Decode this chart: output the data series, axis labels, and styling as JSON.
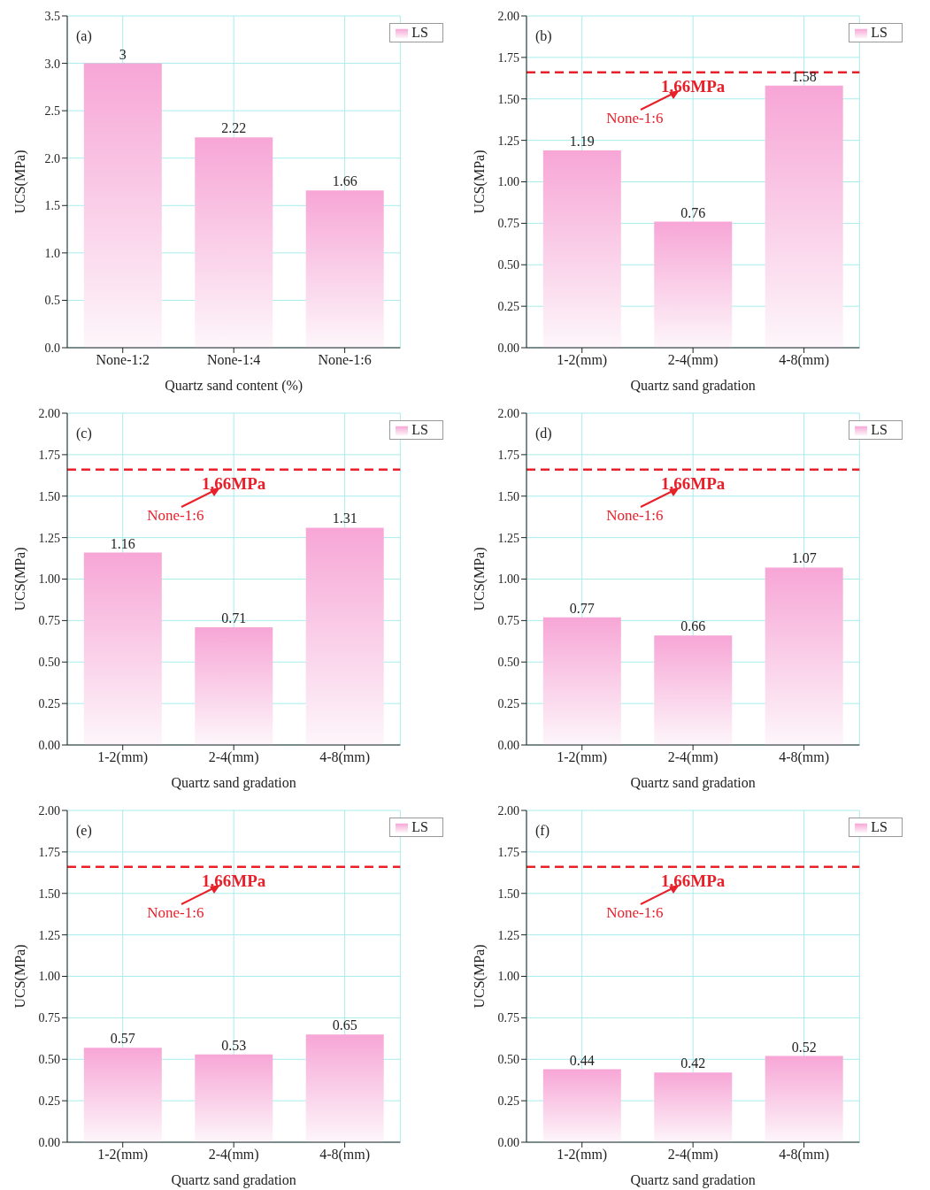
{
  "chart_data": [
    {
      "type": "bar",
      "categories": [
        "None-1:2",
        "None-1:4",
        "None-1:6"
      ],
      "series": [
        {
          "name": "LS",
          "color": "#f7a6d6",
          "values": [
            3,
            2.22,
            1.66
          ]
        }
      ],
      "xlabel": "Quartz sand content (%)",
      "ylabel": "UCS(MPa)",
      "ylim": [
        0,
        3.5
      ],
      "yticks": [
        {
          "value": 0,
          "label": "0.0"
        },
        0.5,
        {
          "value": 1,
          "label": "1.0"
        },
        1.5,
        {
          "value": 2,
          "label": "2.0"
        },
        2.5,
        {
          "value": 3,
          "label": "3.0"
        },
        3.5
      ],
      "grid": true,
      "legend": "top right",
      "data_labels": true,
      "annotations": [
        "(a)"
      ]
    },
    {
      "type": "bar",
      "categories": [
        "1-2(mm)",
        "2-4(mm)",
        "4-8(mm)"
      ],
      "series": [
        {
          "name": "LS",
          "color": "#f7a6d6",
          "values": [
            1.19,
            0.76,
            1.58
          ]
        }
      ],
      "xlabel": "Quartz sand gradation",
      "ylabel": "UCS(MPa)",
      "ylim": [
        0,
        2
      ],
      "yticks": [
        {
          "value": 0,
          "label": "0.00"
        },
        0.25,
        {
          "value": 0.5,
          "label": "0.50"
        },
        0.75,
        {
          "value": 1,
          "label": "1.00"
        },
        1.25,
        {
          "value": 1.5,
          "label": "1.50"
        },
        1.75,
        {
          "value": 2,
          "label": "2.00"
        }
      ],
      "grid": true,
      "legend": "top right",
      "data_labels": true,
      "ref_lines": [
        {
          "axis": "y",
          "value": 1.66,
          "label": "1.66MPa",
          "color": "#e8202a",
          "line_style": "dashed"
        }
      ],
      "annotations": [
        "(b)",
        "None-1:6"
      ]
    },
    {
      "type": "bar",
      "categories": [
        "1-2(mm)",
        "2-4(mm)",
        "4-8(mm)"
      ],
      "series": [
        {
          "name": "LS",
          "color": "#f7a6d6",
          "values": [
            1.16,
            0.71,
            1.31
          ]
        }
      ],
      "xlabel": "Quartz sand gradation",
      "ylabel": "UCS(MPa)",
      "ylim": [
        0,
        2
      ],
      "yticks": [
        {
          "value": 0,
          "label": "0.00"
        },
        0.25,
        {
          "value": 0.5,
          "label": "0.50"
        },
        0.75,
        {
          "value": 1,
          "label": "1.00"
        },
        1.25,
        {
          "value": 1.5,
          "label": "1.50"
        },
        1.75,
        {
          "value": 2,
          "label": "2.00"
        }
      ],
      "grid": true,
      "legend": "top right",
      "data_labels": true,
      "ref_lines": [
        {
          "axis": "y",
          "value": 1.66,
          "label": "1.66MPa",
          "color": "#e8202a",
          "line_style": "dashed"
        }
      ],
      "annotations": [
        "(c)",
        "None-1:6"
      ]
    },
    {
      "type": "bar",
      "categories": [
        "1-2(mm)",
        "2-4(mm)",
        "4-8(mm)"
      ],
      "series": [
        {
          "name": "LS",
          "color": "#f7a6d6",
          "values": [
            0.77,
            0.66,
            1.07
          ]
        }
      ],
      "xlabel": "Quartz sand gradation",
      "ylabel": "UCS(MPa)",
      "ylim": [
        0,
        2
      ],
      "yticks": [
        {
          "value": 0,
          "label": "0.00"
        },
        0.25,
        {
          "value": 0.5,
          "label": "0.50"
        },
        0.75,
        {
          "value": 1,
          "label": "1.00"
        },
        1.25,
        {
          "value": 1.5,
          "label": "1.50"
        },
        1.75,
        {
          "value": 2,
          "label": "2.00"
        }
      ],
      "grid": true,
      "legend": "top right",
      "data_labels": true,
      "ref_lines": [
        {
          "axis": "y",
          "value": 1.66,
          "label": "1.66MPa",
          "color": "#e8202a",
          "line_style": "dashed"
        }
      ],
      "annotations": [
        "(d)",
        "None-1:6"
      ]
    },
    {
      "type": "bar",
      "categories": [
        "1-2(mm)",
        "2-4(mm)",
        "4-8(mm)"
      ],
      "series": [
        {
          "name": "LS",
          "color": "#f7a6d6",
          "values": [
            0.57,
            0.53,
            0.65
          ]
        }
      ],
      "xlabel": "Quartz sand gradation",
      "ylabel": "UCS(MPa)",
      "ylim": [
        0,
        2
      ],
      "yticks": [
        {
          "value": 0,
          "label": "0.00"
        },
        0.25,
        {
          "value": 0.5,
          "label": "0.50"
        },
        0.75,
        {
          "value": 1,
          "label": "1.00"
        },
        1.25,
        {
          "value": 1.5,
          "label": "1.50"
        },
        1.75,
        {
          "value": 2,
          "label": "2.00"
        }
      ],
      "grid": true,
      "legend": "top right",
      "data_labels": true,
      "ref_lines": [
        {
          "axis": "y",
          "value": 1.66,
          "label": "1.66MPa",
          "color": "#e8202a",
          "line_style": "dashed"
        }
      ],
      "annotations": [
        "(e)",
        "None-1:6"
      ]
    },
    {
      "type": "bar",
      "categories": [
        "1-2(mm)",
        "2-4(mm)",
        "4-8(mm)"
      ],
      "series": [
        {
          "name": "LS",
          "color": "#f7a6d6",
          "values": [
            0.44,
            0.42,
            0.52
          ]
        }
      ],
      "xlabel": "Quartz sand gradation",
      "ylabel": "UCS(MPa)",
      "ylim": [
        0,
        2
      ],
      "yticks": [
        {
          "value": 0,
          "label": "0.00"
        },
        0.25,
        {
          "value": 0.5,
          "label": "0.50"
        },
        0.75,
        {
          "value": 1,
          "label": "1.00"
        },
        1.25,
        {
          "value": 1.5,
          "label": "1.50"
        },
        1.75,
        {
          "value": 2,
          "label": "2.00"
        }
      ],
      "grid": true,
      "legend": "top right",
      "data_labels": true,
      "ref_lines": [
        {
          "axis": "y",
          "value": 1.66,
          "label": "1.66MPa",
          "color": "#e8202a",
          "line_style": "dashed"
        }
      ],
      "annotations": [
        "(f)",
        "None-1:6"
      ]
    }
  ]
}
